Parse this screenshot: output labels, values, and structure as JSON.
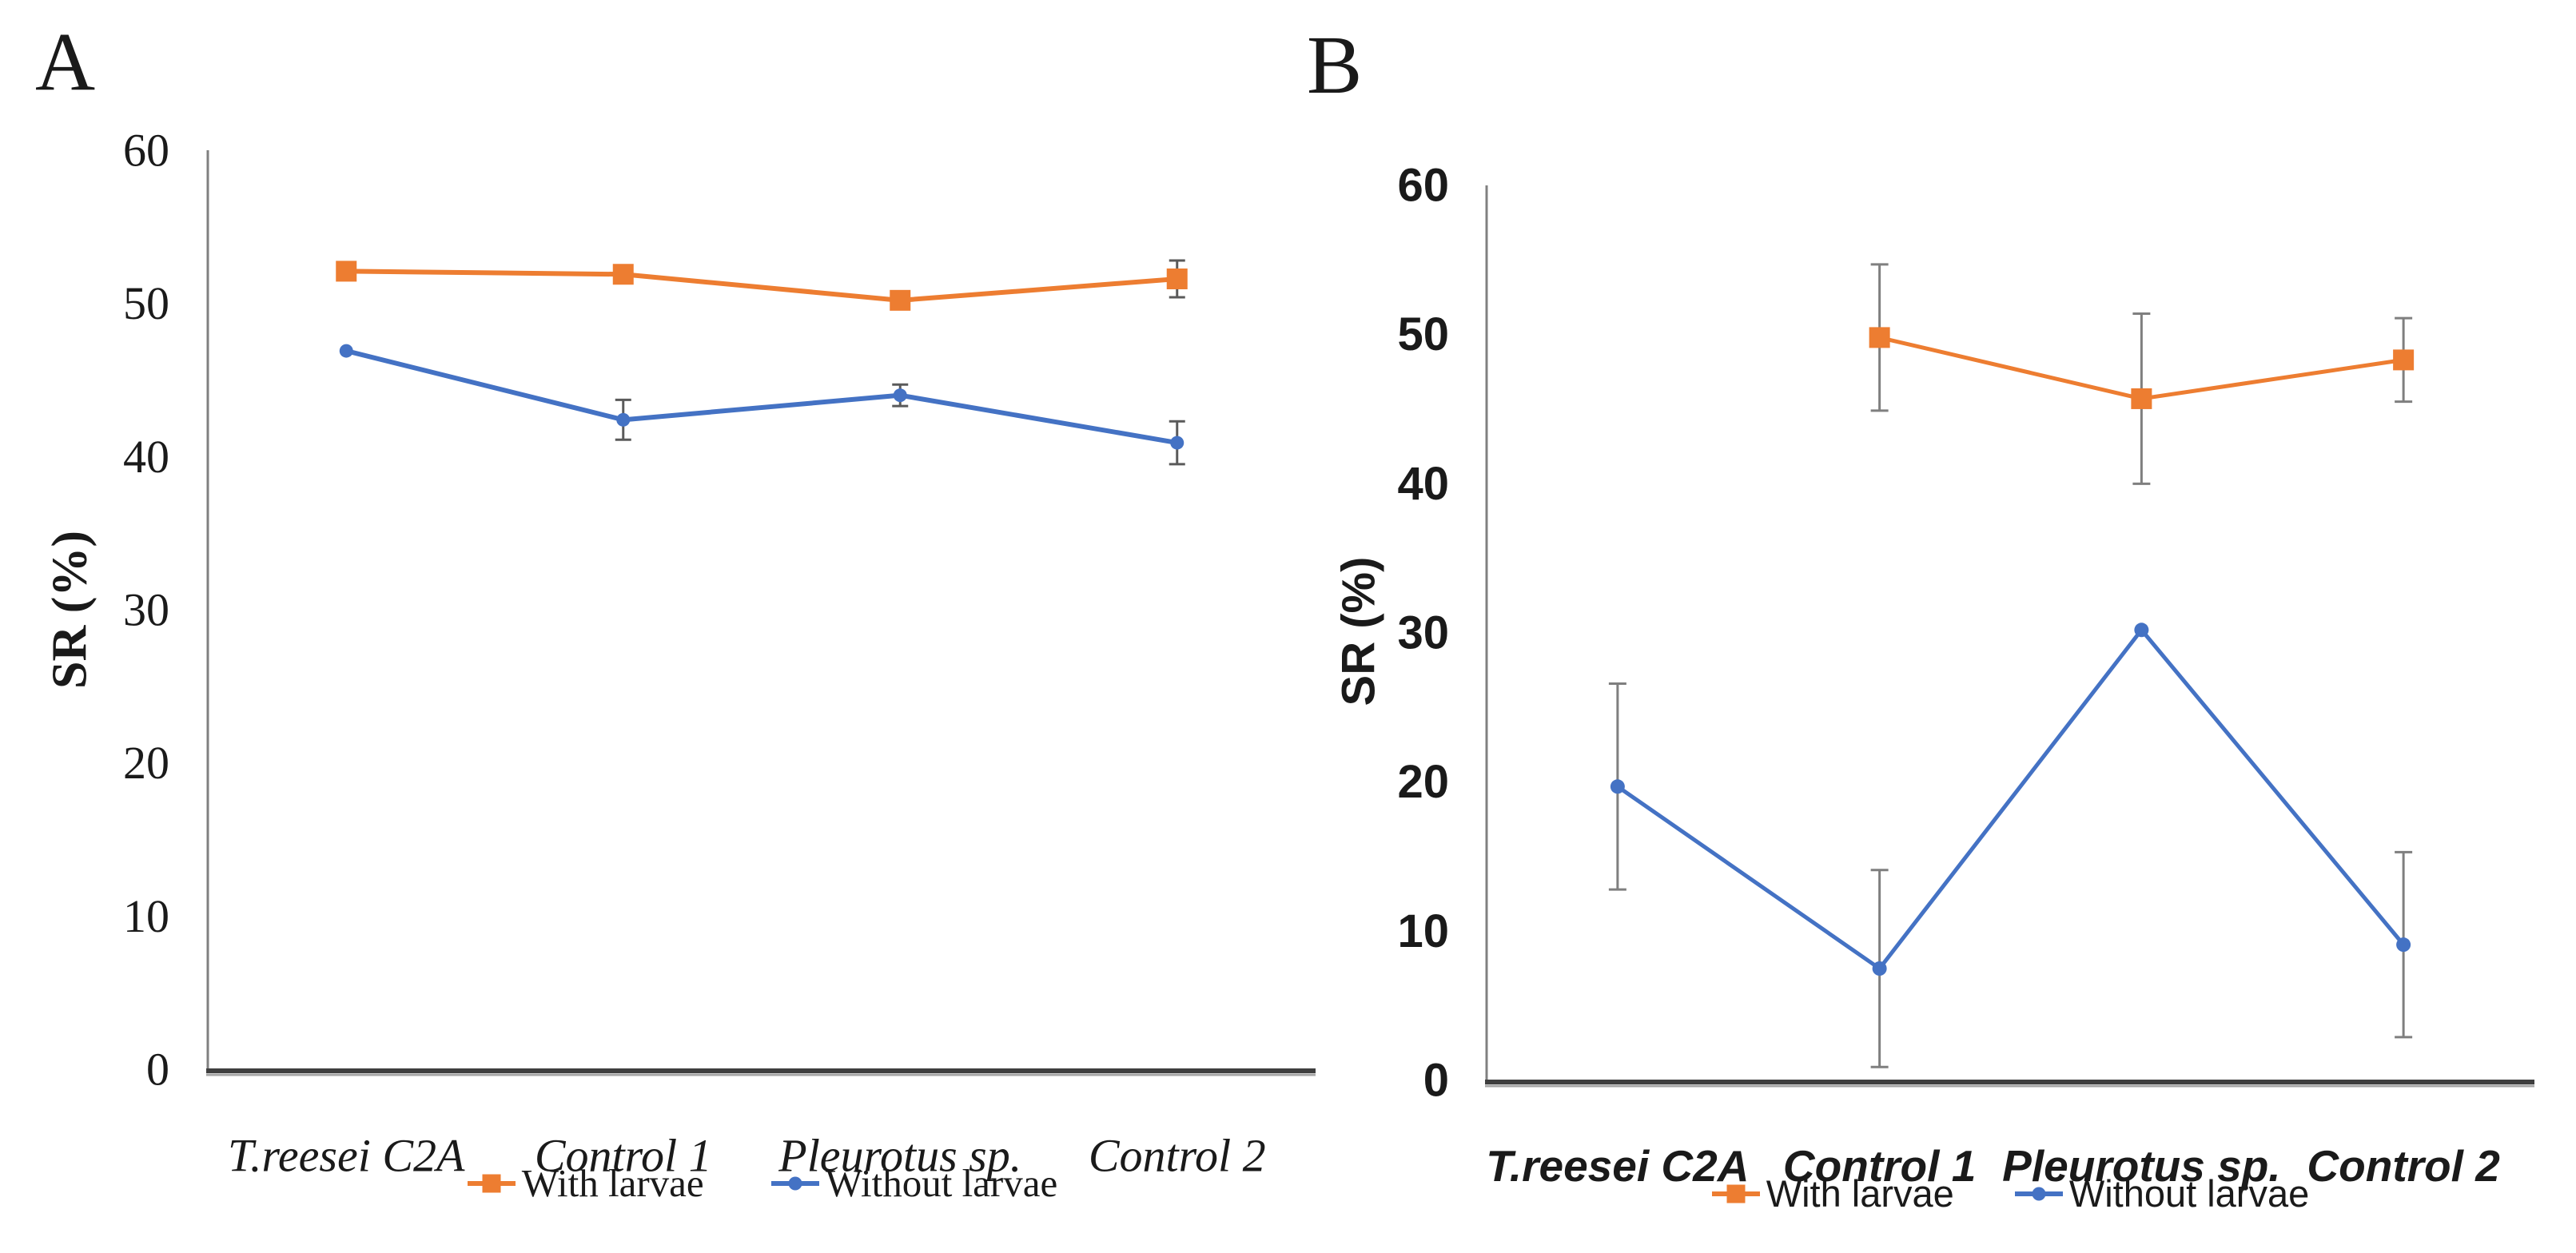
{
  "figure_title": "",
  "chart_data": [
    {
      "type": "line",
      "panel_label": "A",
      "title": "",
      "xlabel": "",
      "ylabel": "SR (%)",
      "ylim": [
        0,
        60
      ],
      "ytick_step": 10,
      "grid": false,
      "legend_position": "bottom",
      "categories": [
        "T.reesei C2A",
        "Control 1",
        "Pleurotus sp.",
        "Control 2"
      ],
      "series": [
        {
          "name": "With larvae",
          "color": "#ED7D31",
          "marker": "square",
          "values": [
            52.1,
            51.9,
            50.2,
            51.6
          ],
          "errors": [
            null,
            null,
            null,
            1.2
          ]
        },
        {
          "name": "Without larvae",
          "color": "#4472C4",
          "marker": "circle",
          "values": [
            46.9,
            42.4,
            44.0,
            40.9
          ],
          "errors": [
            null,
            1.3,
            0.7,
            1.4
          ]
        }
      ]
    },
    {
      "type": "line",
      "panel_label": "B",
      "title": "",
      "xlabel": "",
      "ylabel": "SR (%)",
      "ylim": [
        0,
        60
      ],
      "ytick_step": 10,
      "grid": false,
      "legend_position": "bottom",
      "categories": [
        "T.reesei C2A",
        "Control 1",
        "Pleurotus sp.",
        "Control 2"
      ],
      "series": [
        {
          "name": "With larvae",
          "color": "#ED7D31",
          "marker": "square",
          "values": [
            null,
            49.8,
            45.7,
            48.3
          ],
          "errors": [
            null,
            4.9,
            5.7,
            2.8
          ]
        },
        {
          "name": "Without larvae",
          "color": "#4472C4",
          "marker": "circle",
          "values": [
            19.7,
            7.5,
            30.2,
            9.1
          ],
          "errors": [
            6.9,
            6.6,
            null,
            6.2
          ]
        }
      ]
    }
  ],
  "colors": {
    "with_larvae": "#ED7D31",
    "without_larvae": "#4472C4",
    "error_bar": "#757575",
    "axis_line": "#3f3f3f",
    "axis_shadow": "#a6a6a6",
    "y_axis_line": "#808080",
    "text": "#1a1a1a"
  }
}
